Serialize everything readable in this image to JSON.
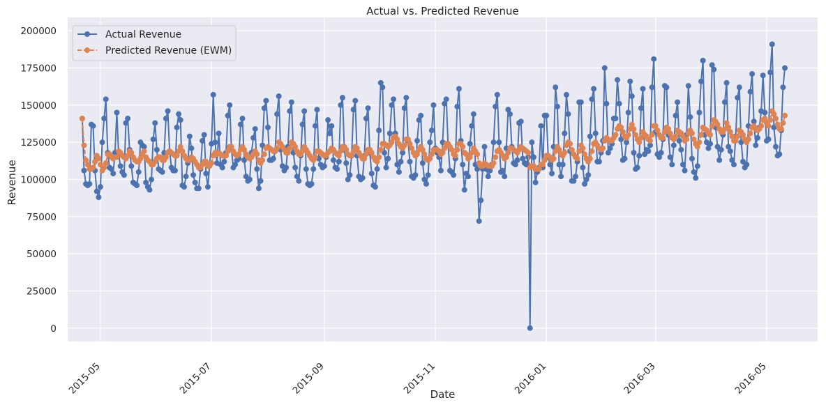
{
  "chart_data": {
    "type": "line",
    "title": "Actual vs. Predicted Revenue",
    "xlabel": "Date",
    "ylabel": "Revenue",
    "x_start": "2015-04-21",
    "x_end": "2016-05-21",
    "xlim": [
      "2015-04-13",
      "2016-05-29"
    ],
    "ylim": [
      -9000,
      209000
    ],
    "x_tick_labels": [
      "2015-05",
      "2015-07",
      "2015-09",
      "2015-11",
      "2016-01",
      "2016-03",
      "2016-05"
    ],
    "x_tick_dates": [
      "2015-05-01",
      "2015-07-01",
      "2015-09-01",
      "2015-11-01",
      "2016-01-01",
      "2016-03-01",
      "2016-05-01"
    ],
    "y_ticks": [
      0,
      25000,
      50000,
      75000,
      100000,
      125000,
      150000,
      175000,
      200000
    ],
    "grid": true,
    "legend_position": "top-left",
    "background": "#eaeaf2",
    "series": [
      {
        "name": "Actual Revenue",
        "color": "#4c72b0",
        "style": "solid",
        "marker": "circle",
        "values": [
          141000,
          106000,
          97000,
          96000,
          97000,
          137000,
          136000,
          106000,
          92000,
          88000,
          95000,
          125000,
          141000,
          154000,
          118000,
          108000,
          107000,
          104000,
          118000,
          145000,
          117000,
          109000,
          105000,
          103000,
          138000,
          141000,
          120000,
          109000,
          98000,
          97000,
          96000,
          105000,
          125000,
          123000,
          122000,
          98000,
          95000,
          93000,
          100000,
          127000,
          138000,
          120000,
          107000,
          106000,
          105000,
          118000,
          141000,
          146000,
          119000,
          108000,
          106000,
          106000,
          135000,
          144000,
          140000,
          96000,
          95000,
          102000,
          111000,
          129000,
          121000,
          103000,
          98000,
          94000,
          94000,
          107000,
          126000,
          130000,
          104000,
          95000,
          110000,
          124000,
          157000,
          125000,
          111000,
          131000,
          110000,
          108000,
          112000,
          118000,
          143000,
          150000,
          120000,
          108000,
          110000,
          113000,
          114000,
          137000,
          141000,
          113000,
          102000,
          99000,
          100000,
          118000,
          128000,
          134000,
          107000,
          94000,
          99000,
          123000,
          148000,
          153000,
          135000,
          113000,
          113000,
          114000,
          119000,
          144000,
          156000,
          120000,
          109000,
          106000,
          108000,
          122000,
          146000,
          152000,
          118000,
          108000,
          102000,
          99000,
          116000,
          137000,
          146000,
          107000,
          97000,
          96000,
          97000,
          107000,
          136000,
          147000,
          114000,
          110000,
          108000,
          109000,
          115000,
          140000,
          131000,
          136000,
          113000,
          108000,
          107000,
          112000,
          150000,
          155000,
          120000,
          111000,
          100000,
          103000,
          116000,
          147000,
          153000,
          116000,
          102000,
          100000,
          101000,
          116000,
          141000,
          148000,
          118000,
          104000,
          96000,
          95000,
          107000,
          133000,
          165000,
          162000,
          118000,
          108000,
          114000,
          131000,
          150000,
          154000,
          131000,
          110000,
          105000,
          112000,
          118000,
          148000,
          155000,
          126000,
          112000,
          102000,
          101000,
          103000,
          126000,
          140000,
          143000,
          111000,
          100000,
          97000,
          103000,
          125000,
          133000,
          150000,
          121000,
          118000,
          115000,
          106000,
          125000,
          151000,
          154000,
          123000,
          106000,
          105000,
          103000,
          114000,
          149000,
          161000,
          126000,
          110000,
          93000,
          104000,
          102000,
          124000,
          136000,
          144000,
          110000,
          107000,
          72000,
          86000,
          107000,
          122000,
          107000,
          102000,
          106000,
          110000,
          125000,
          149000,
          157000,
          125000,
          105000,
          106000,
          102000,
          121000,
          147000,
          144000,
          122000,
          111000,
          110000,
          113000,
          138000,
          139000,
          114000,
          111000,
          110000,
          115000,
          0,
          125000,
          115000,
          98000,
          105000,
          108000,
          136000,
          108000,
          143000,
          143000,
          115000,
          110000,
          104000,
          122000,
          162000,
          149000,
          110000,
          102000,
          110000,
          131000,
          157000,
          144000,
          119000,
          99000,
          99000,
          102000,
          112000,
          152000,
          152000,
          108000,
          97000,
          100000,
          103000,
          129000,
          154000,
          161000,
          131000,
          112000,
          112000,
          118000,
          126000,
          175000,
          151000,
          118000,
          121000,
          124000,
          141000,
          141000,
          167000,
          151000,
          127000,
          113000,
          114000,
          125000,
          145000,
          166000,
          156000,
          118000,
          107000,
          108000,
          116000,
          148000,
          161000,
          117000,
          120000,
          119000,
          123000,
          162000,
          181000,
          132000,
          117000,
          115000,
          118000,
          127000,
          163000,
          162000,
          130000,
          115000,
          110000,
          123000,
          143000,
          152000,
          126000,
          120000,
          110000,
          106000,
          130000,
          163000,
          142000,
          114000,
          105000,
          101000,
          109000,
          145000,
          166000,
          180000,
          130000,
          125000,
          121000,
          124000,
          177000,
          174000,
          135000,
          122000,
          113000,
          120000,
          130000,
          152000,
          165000,
          122000,
          119000,
          113000,
          110000,
          129000,
          155000,
          162000,
          125000,
          112000,
          108000,
          110000,
          136000,
          159000,
          171000,
          139000,
          123000,
          128000,
          135000,
          146000,
          170000,
          145000,
          126000,
          127000,
          172000,
          191000,
          135000,
          122000,
          116000,
          117000,
          133000,
          162000,
          175000
        ]
      },
      {
        "name": "Predicted Revenue (EWM)",
        "color": "#dd8452",
        "style": "dashed",
        "marker": "circle",
        "values": [
          141000,
          123000,
          113000,
          110000,
          107000,
          107000,
          108000,
          112000,
          116000,
          114000,
          110000,
          106000,
          108000,
          111000,
          117000,
          117000,
          115000,
          114000,
          115000,
          115000,
          119000,
          118000,
          116000,
          115000,
          114000,
          116000,
          119000,
          118000,
          115000,
          113000,
          112000,
          112000,
          114000,
          117000,
          119000,
          115000,
          113000,
          112000,
          110000,
          110000,
          112000,
          114000,
          115000,
          115000,
          113000,
          113000,
          115000,
          118000,
          119000,
          118000,
          117000,
          116000,
          116000,
          119000,
          122000,
          119000,
          116000,
          114000,
          113000,
          113000,
          115000,
          114000,
          112000,
          110000,
          108000,
          108000,
          110000,
          112000,
          112000,
          109000,
          109000,
          111000,
          116000,
          118000,
          117000,
          118000,
          117000,
          116000,
          116000,
          116000,
          119000,
          122000,
          122000,
          119000,
          117000,
          116000,
          117000,
          120000,
          122000,
          120000,
          117000,
          115000,
          114000,
          115000,
          117000,
          119000,
          117000,
          113000,
          111000,
          113000,
          117000,
          121000,
          122000,
          121000,
          120000,
          119000,
          119000,
          121000,
          125000,
          124000,
          122000,
          120000,
          118000,
          118000,
          121000,
          125000,
          124000,
          122000,
          119000,
          117000,
          117000,
          119000,
          122000,
          120000,
          118000,
          116000,
          114000,
          113000,
          115000,
          119000,
          119000,
          118000,
          117000,
          116000,
          116000,
          118000,
          119000,
          121000,
          120000,
          118000,
          117000,
          116000,
          119000,
          122000,
          122000,
          120000,
          117000,
          116000,
          116000,
          119000,
          122000,
          121000,
          118000,
          116000,
          114000,
          114000,
          117000,
          120000,
          120000,
          118000,
          115000,
          113000,
          112000,
          115000,
          120000,
          124000,
          124000,
          123000,
          122000,
          123000,
          125000,
          128000,
          129000,
          127000,
          124000,
          122000,
          121000,
          123000,
          127000,
          127000,
          124000,
          121000,
          118000,
          116000,
          117000,
          120000,
          122000,
          120000,
          117000,
          114000,
          113000,
          114000,
          117000,
          120000,
          120000,
          120000,
          119000,
          117000,
          118000,
          121000,
          124000,
          124000,
          122000,
          120000,
          117000,
          116000,
          120000,
          124000,
          124000,
          122000,
          118000,
          117000,
          114000,
          115000,
          118000,
          121000,
          119000,
          117000,
          111000,
          109000,
          109000,
          111000,
          110000,
          109000,
          109000,
          109000,
          111000,
          115000,
          119000,
          120000,
          118000,
          116000,
          114000,
          115000,
          118000,
          121000,
          121000,
          120000,
          119000,
          118000,
          120000,
          122000,
          121000,
          120000,
          119000,
          118000,
          108000,
          109000,
          109000,
          107000,
          107000,
          107000,
          110000,
          110000,
          113000,
          116000,
          116000,
          115000,
          113000,
          114000,
          119000,
          122000,
          120000,
          117000,
          116000,
          118000,
          123000,
          125000,
          124000,
          120000,
          117000,
          115000,
          114000,
          119000,
          123000,
          121000,
          117000,
          114000,
          112000,
          114000,
          119000,
          124000,
          125000,
          123000,
          121000,
          120000,
          121000,
          126000,
          128000,
          127000,
          126000,
          126000,
          128000,
          130000,
          134000,
          136000,
          135000,
          132000,
          129000,
          128000,
          130000,
          134000,
          137000,
          134000,
          130000,
          127000,
          125000,
          128000,
          132000,
          130000,
          129000,
          127000,
          126000,
          130000,
          136000,
          136000,
          133000,
          130000,
          128000,
          128000,
          132000,
          135000,
          134000,
          131000,
          128000,
          127000,
          129000,
          133000,
          132000,
          131000,
          129000,
          126000,
          127000,
          131000,
          133000,
          131000,
          127000,
          124000,
          122000,
          125000,
          130000,
          135000,
          134000,
          133000,
          131000,
          130000,
          136000,
          140000,
          139000,
          137000,
          134000,
          132000,
          132000,
          134000,
          138000,
          135000,
          132000,
          129000,
          126000,
          126000,
          129000,
          133000,
          132000,
          130000,
          127000,
          125000,
          127000,
          131000,
          135000,
          136000,
          134000,
          133000,
          134000,
          136000,
          140000,
          141000,
          138000,
          136000,
          140000,
          146000,
          144000,
          141000,
          137000,
          134000,
          134000,
          138000,
          143000
        ]
      }
    ]
  }
}
